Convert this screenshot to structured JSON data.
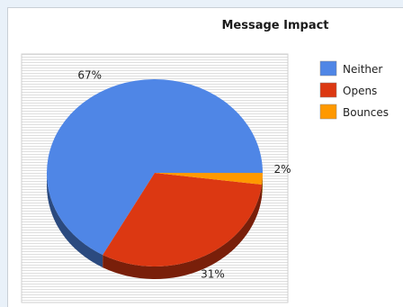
{
  "chart_data": {
    "type": "pie",
    "title": "Message Impact",
    "slices": [
      {
        "name": "Neither",
        "value": 67,
        "label": "67%",
        "color": "#4f86e6"
      },
      {
        "name": "Opens",
        "value": 31,
        "label": "31%",
        "color": "#dc3812"
      },
      {
        "name": "Bounces",
        "value": 2,
        "label": "2%",
        "color": "#ff9900"
      }
    ],
    "legend_position": "right",
    "three_d": true,
    "grid": "horizontal stripes"
  }
}
